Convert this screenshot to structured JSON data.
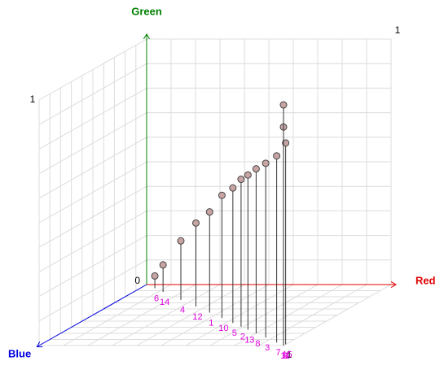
{
  "chart_data": {
    "type": "scatter3d",
    "x_label": "Red",
    "y_label": "Green",
    "z_label": "Blue",
    "xlim": [
      0,
      1
    ],
    "ylim": [
      0,
      1
    ],
    "zlim": [
      0,
      1
    ],
    "x_color": "#e00000",
    "y_color": "#008000",
    "z_color": "#0000e0",
    "grid": true,
    "marker_color": "#c8a4a4",
    "points": [
      {
        "label": "6",
        "x": 0.06,
        "y": 0.05,
        "z": 0.06
      },
      {
        "label": "14",
        "x": 0.12,
        "y": 0.11,
        "z": 0.12
      },
      {
        "label": "4",
        "x": 0.25,
        "y": 0.24,
        "z": 0.25
      },
      {
        "label": "12",
        "x": 0.36,
        "y": 0.34,
        "z": 0.36
      },
      {
        "label": "1",
        "x": 0.46,
        "y": 0.41,
        "z": 0.46
      },
      {
        "label": "10",
        "x": 0.55,
        "y": 0.5,
        "z": 0.55
      },
      {
        "label": "5",
        "x": 0.63,
        "y": 0.55,
        "z": 0.63
      },
      {
        "label": "2",
        "x": 0.69,
        "y": 0.6,
        "z": 0.69
      },
      {
        "label": "13",
        "x": 0.74,
        "y": 0.63,
        "z": 0.74
      },
      {
        "label": "8",
        "x": 0.8,
        "y": 0.67,
        "z": 0.8
      },
      {
        "label": "3",
        "x": 0.87,
        "y": 0.71,
        "z": 0.87
      },
      {
        "label": "7",
        "x": 0.95,
        "y": 0.76,
        "z": 0.95
      },
      {
        "label": "15",
        "x": 1.0,
        "y": 0.82,
        "z": 0.98
      },
      {
        "label": "11",
        "x": 1.0,
        "y": 0.89,
        "z": 1.0
      },
      {
        "label": "9",
        "x": 1.0,
        "y": 0.98,
        "z": 1.0
      }
    ]
  }
}
